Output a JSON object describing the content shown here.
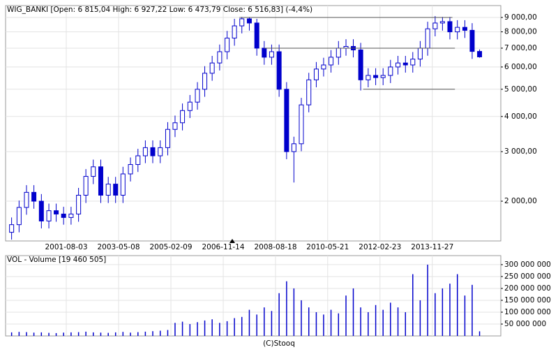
{
  "chart_data": [
    {
      "type": "candlestick",
      "title": "WIG_BANKI [Open: 6 815,04  High: 6 927,22  Low: 6 473,79  Close: 6 516,83] (-4,4%)",
      "log": true,
      "grid": true,
      "color": "#0000cc",
      "xlim": [
        "1999-07-19",
        "2016-03-18"
      ],
      "xticks": [
        "2001-08-03",
        "2003-05-08",
        "2005-02-09",
        "2006-11-14",
        "2008-08-18",
        "2010-05-21",
        "2012-02-23",
        "2013-11-27"
      ],
      "ylim": [
        1444,
        9918
      ],
      "yticks": [
        {
          "value": 2000,
          "label": "2 000,00"
        },
        {
          "value": 3000,
          "label": "3 000,00"
        },
        {
          "value": 4000,
          "label": "4 000,00"
        },
        {
          "value": 5000,
          "label": "5 000,00"
        },
        {
          "value": 6000,
          "label": "6 000,00"
        },
        {
          "value": 7000,
          "label": "7 000,00"
        },
        {
          "value": 8000,
          "label": "8 000,00"
        },
        {
          "value": 9000,
          "label": "9 000,00"
        }
      ],
      "levels": [
        {
          "value": 9000,
          "x": [
            "2007-06-01",
            "2014-08-01"
          ]
        },
        {
          "value": 7000,
          "x": [
            "2008-04-01",
            "2014-09-01"
          ]
        },
        {
          "value": 5000,
          "x": [
            "2011-08-01",
            "2014-09-01"
          ]
        }
      ],
      "x": [
        "1999-10-01",
        "2000-01-01",
        "2000-04-01",
        "2000-07-01",
        "2000-10-01",
        "2001-01-01",
        "2001-04-01",
        "2001-07-01",
        "2001-10-01",
        "2002-01-01",
        "2002-04-01",
        "2002-07-01",
        "2002-10-01",
        "2003-01-01",
        "2003-04-01",
        "2003-07-01",
        "2003-10-01",
        "2004-01-01",
        "2004-04-01",
        "2004-07-01",
        "2004-10-01",
        "2005-01-01",
        "2005-04-01",
        "2005-07-01",
        "2005-10-01",
        "2006-01-01",
        "2006-04-01",
        "2006-07-01",
        "2006-10-01",
        "2007-01-01",
        "2007-04-01",
        "2007-07-01",
        "2007-10-01",
        "2008-01-01",
        "2008-04-01",
        "2008-07-01",
        "2008-10-01",
        "2009-01-01",
        "2009-04-01",
        "2009-07-01",
        "2009-10-01",
        "2010-01-01",
        "2010-04-01",
        "2010-07-01",
        "2010-10-01",
        "2011-01-01",
        "2011-04-01",
        "2011-07-01",
        "2011-10-01",
        "2012-01-01",
        "2012-04-01",
        "2012-07-01",
        "2012-10-01",
        "2013-01-01",
        "2013-04-01",
        "2013-07-01",
        "2013-10-01",
        "2014-01-01",
        "2014-04-01",
        "2014-07-01",
        "2014-10-01",
        "2015-01-01",
        "2015-04-01",
        "2015-07-01"
      ],
      "open": [
        1550,
        1650,
        1900,
        2150,
        2000,
        1700,
        1850,
        1800,
        1750,
        1800,
        2100,
        2450,
        2650,
        2100,
        2300,
        2100,
        2500,
        2700,
        2900,
        3100,
        2900,
        3100,
        3600,
        3800,
        4200,
        4500,
        5000,
        5700,
        6200,
        6800,
        7600,
        8400,
        8900,
        8600,
        7000,
        6500,
        6800,
        5000,
        3000,
        3200,
        4400,
        5400,
        5900,
        6100,
        6500,
        7000,
        7100,
        6900,
        5400,
        5600,
        5500,
        5600,
        6000,
        6200,
        6100,
        6400,
        7000,
        8200,
        8600,
        8700,
        8000,
        8300,
        8100,
        6815.04
      ],
      "high": [
        1750,
        2010,
        2280,
        2280,
        2120,
        1960,
        1960,
        1910,
        1910,
        2230,
        2600,
        2810,
        2810,
        2440,
        2440,
        2650,
        2860,
        3070,
        3290,
        3290,
        3290,
        3820,
        4030,
        4450,
        4770,
        5300,
        6040,
        6570,
        7210,
        8060,
        8900,
        9040,
        9030,
        8900,
        7420,
        7210,
        7210,
        5300,
        3390,
        4660,
        5720,
        6250,
        6470,
        6890,
        7420,
        7530,
        7530,
        7310,
        5940,
        5940,
        5940,
        6360,
        6570,
        6570,
        6780,
        7420,
        8690,
        9100,
        9040,
        9040,
        8800,
        8800,
        8590,
        6927.22
      ],
      "low": [
        1460,
        1550,
        1790,
        1880,
        1600,
        1600,
        1690,
        1650,
        1650,
        1690,
        1970,
        2300,
        1970,
        1970,
        1970,
        1970,
        2350,
        2540,
        2730,
        2730,
        2730,
        2910,
        3380,
        3570,
        3950,
        4230,
        4700,
        5360,
        5830,
        6390,
        7140,
        7900,
        8080,
        6580,
        6110,
        6110,
        4700,
        2820,
        2330,
        3010,
        4140,
        5080,
        5550,
        5730,
        6110,
        6580,
        6490,
        4950,
        5080,
        5170,
        5170,
        5260,
        5640,
        5730,
        5730,
        6020,
        6580,
        7710,
        8080,
        7520,
        7520,
        7610,
        6410,
        6473.79
      ],
      "close": [
        1650,
        1900,
        2150,
        2000,
        1700,
        1850,
        1800,
        1750,
        1800,
        2100,
        2450,
        2650,
        2100,
        2300,
        2100,
        2500,
        2700,
        2900,
        3100,
        2900,
        3100,
        3600,
        3800,
        4200,
        4500,
        5000,
        5700,
        6200,
        6800,
        7600,
        8400,
        8900,
        8600,
        7000,
        6500,
        6800,
        5000,
        3000,
        3200,
        4400,
        5400,
        5900,
        6100,
        6500,
        7000,
        7100,
        6900,
        5400,
        5600,
        5500,
        5600,
        6000,
        6200,
        6100,
        6400,
        7000,
        8200,
        8600,
        8700,
        8000,
        8300,
        8100,
        6815.04,
        6516.83
      ]
    },
    {
      "type": "bar",
      "title": "VOL - Volume [19 460 505]",
      "color": "#0000cc",
      "grid": true,
      "ylim": [
        0,
        338000000
      ],
      "yticks": [
        {
          "value": 50000000,
          "label": "50 000 000"
        },
        {
          "value": 100000000,
          "label": "100 000 000"
        },
        {
          "value": 150000000,
          "label": "150 000 000"
        },
        {
          "value": 200000000,
          "label": "200 000 000"
        },
        {
          "value": 250000000,
          "label": "250 000 000"
        },
        {
          "value": 300000000,
          "label": "300 000 000"
        }
      ],
      "values": [
        15000000,
        17000000,
        16000000,
        14000000,
        15000000,
        13000000,
        12000000,
        14000000,
        15000000,
        16000000,
        18000000,
        15000000,
        14000000,
        13000000,
        15000000,
        17000000,
        14000000,
        16000000,
        18000000,
        20000000,
        22000000,
        25000000,
        55000000,
        60000000,
        50000000,
        58000000,
        65000000,
        70000000,
        55000000,
        62000000,
        75000000,
        80000000,
        110000000,
        90000000,
        120000000,
        105000000,
        180000000,
        230000000,
        200000000,
        150000000,
        120000000,
        100000000,
        90000000,
        110000000,
        95000000,
        170000000,
        200000000,
        120000000,
        100000000,
        130000000,
        110000000,
        140000000,
        120000000,
        100000000,
        260000000,
        150000000,
        300000000,
        180000000,
        200000000,
        220000000,
        260000000,
        170000000,
        215000000,
        19460505
      ],
      "footer": "(C)Stooq"
    }
  ]
}
